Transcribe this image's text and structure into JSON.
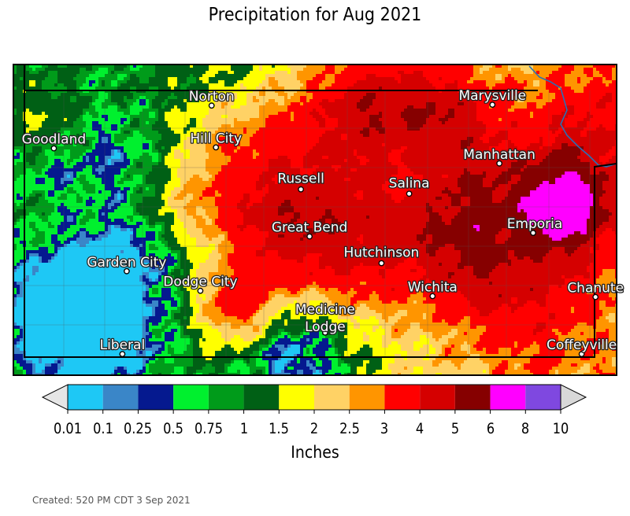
{
  "title": "Precipitation for Aug 2021",
  "cities": [
    {
      "name": "Norton",
      "lat": 39.83,
      "lon": -99.89
    },
    {
      "name": "Marysville",
      "lat": 39.84,
      "lon": -96.65
    },
    {
      "name": "Goodland",
      "lat": 39.35,
      "lon": -101.71
    },
    {
      "name": "Hill City",
      "lat": 39.36,
      "lon": -99.84
    },
    {
      "name": "Manhattan",
      "lat": 39.18,
      "lon": -96.57
    },
    {
      "name": "Russell",
      "lat": 38.89,
      "lon": -98.86
    },
    {
      "name": "Salina",
      "lat": 38.84,
      "lon": -97.61
    },
    {
      "name": "Emporia",
      "lat": 38.4,
      "lon": -96.18
    },
    {
      "name": "Great Bend",
      "lat": 38.36,
      "lon": -98.76
    },
    {
      "name": "Garden City",
      "lat": 37.97,
      "lon": -100.87
    },
    {
      "name": "Hutchinson",
      "lat": 38.06,
      "lon": -97.93
    },
    {
      "name": "Dodge City",
      "lat": 37.75,
      "lon": -100.02
    },
    {
      "name": "Wichita",
      "lat": 37.69,
      "lon": -97.34
    },
    {
      "name": "Chanute",
      "lat": 37.68,
      "lon": -95.46
    },
    {
      "name": "Medicine Lodge",
      "lat": 37.28,
      "lon": -98.58
    },
    {
      "name": "Liberal",
      "lat": 37.04,
      "lon": -100.92
    },
    {
      "name": "Coffeyville",
      "lat": 37.04,
      "lon": -95.62
    }
  ],
  "legend": {
    "ticks": [
      "0.01",
      "0.1",
      "0.25",
      "0.5",
      "0.75",
      "1",
      "1.5",
      "2",
      "2.5",
      "3",
      "4",
      "5",
      "6",
      "8",
      "10"
    ],
    "colors": [
      "#1ec8f5",
      "#3a86c8",
      "#05198f",
      "#00f02e",
      "#009b1a",
      "#006015",
      "#ffff00",
      "#ffd265",
      "#ff9500",
      "#ff0000",
      "#d50000",
      "#860000",
      "#ff00ff",
      "#7f48e0"
    ],
    "under_color": "#e6e6e6",
    "over_color": "#d8d8d8",
    "units": "Inches"
  },
  "created": "Created: 520 PM CDT 3 Sep 2021"
}
